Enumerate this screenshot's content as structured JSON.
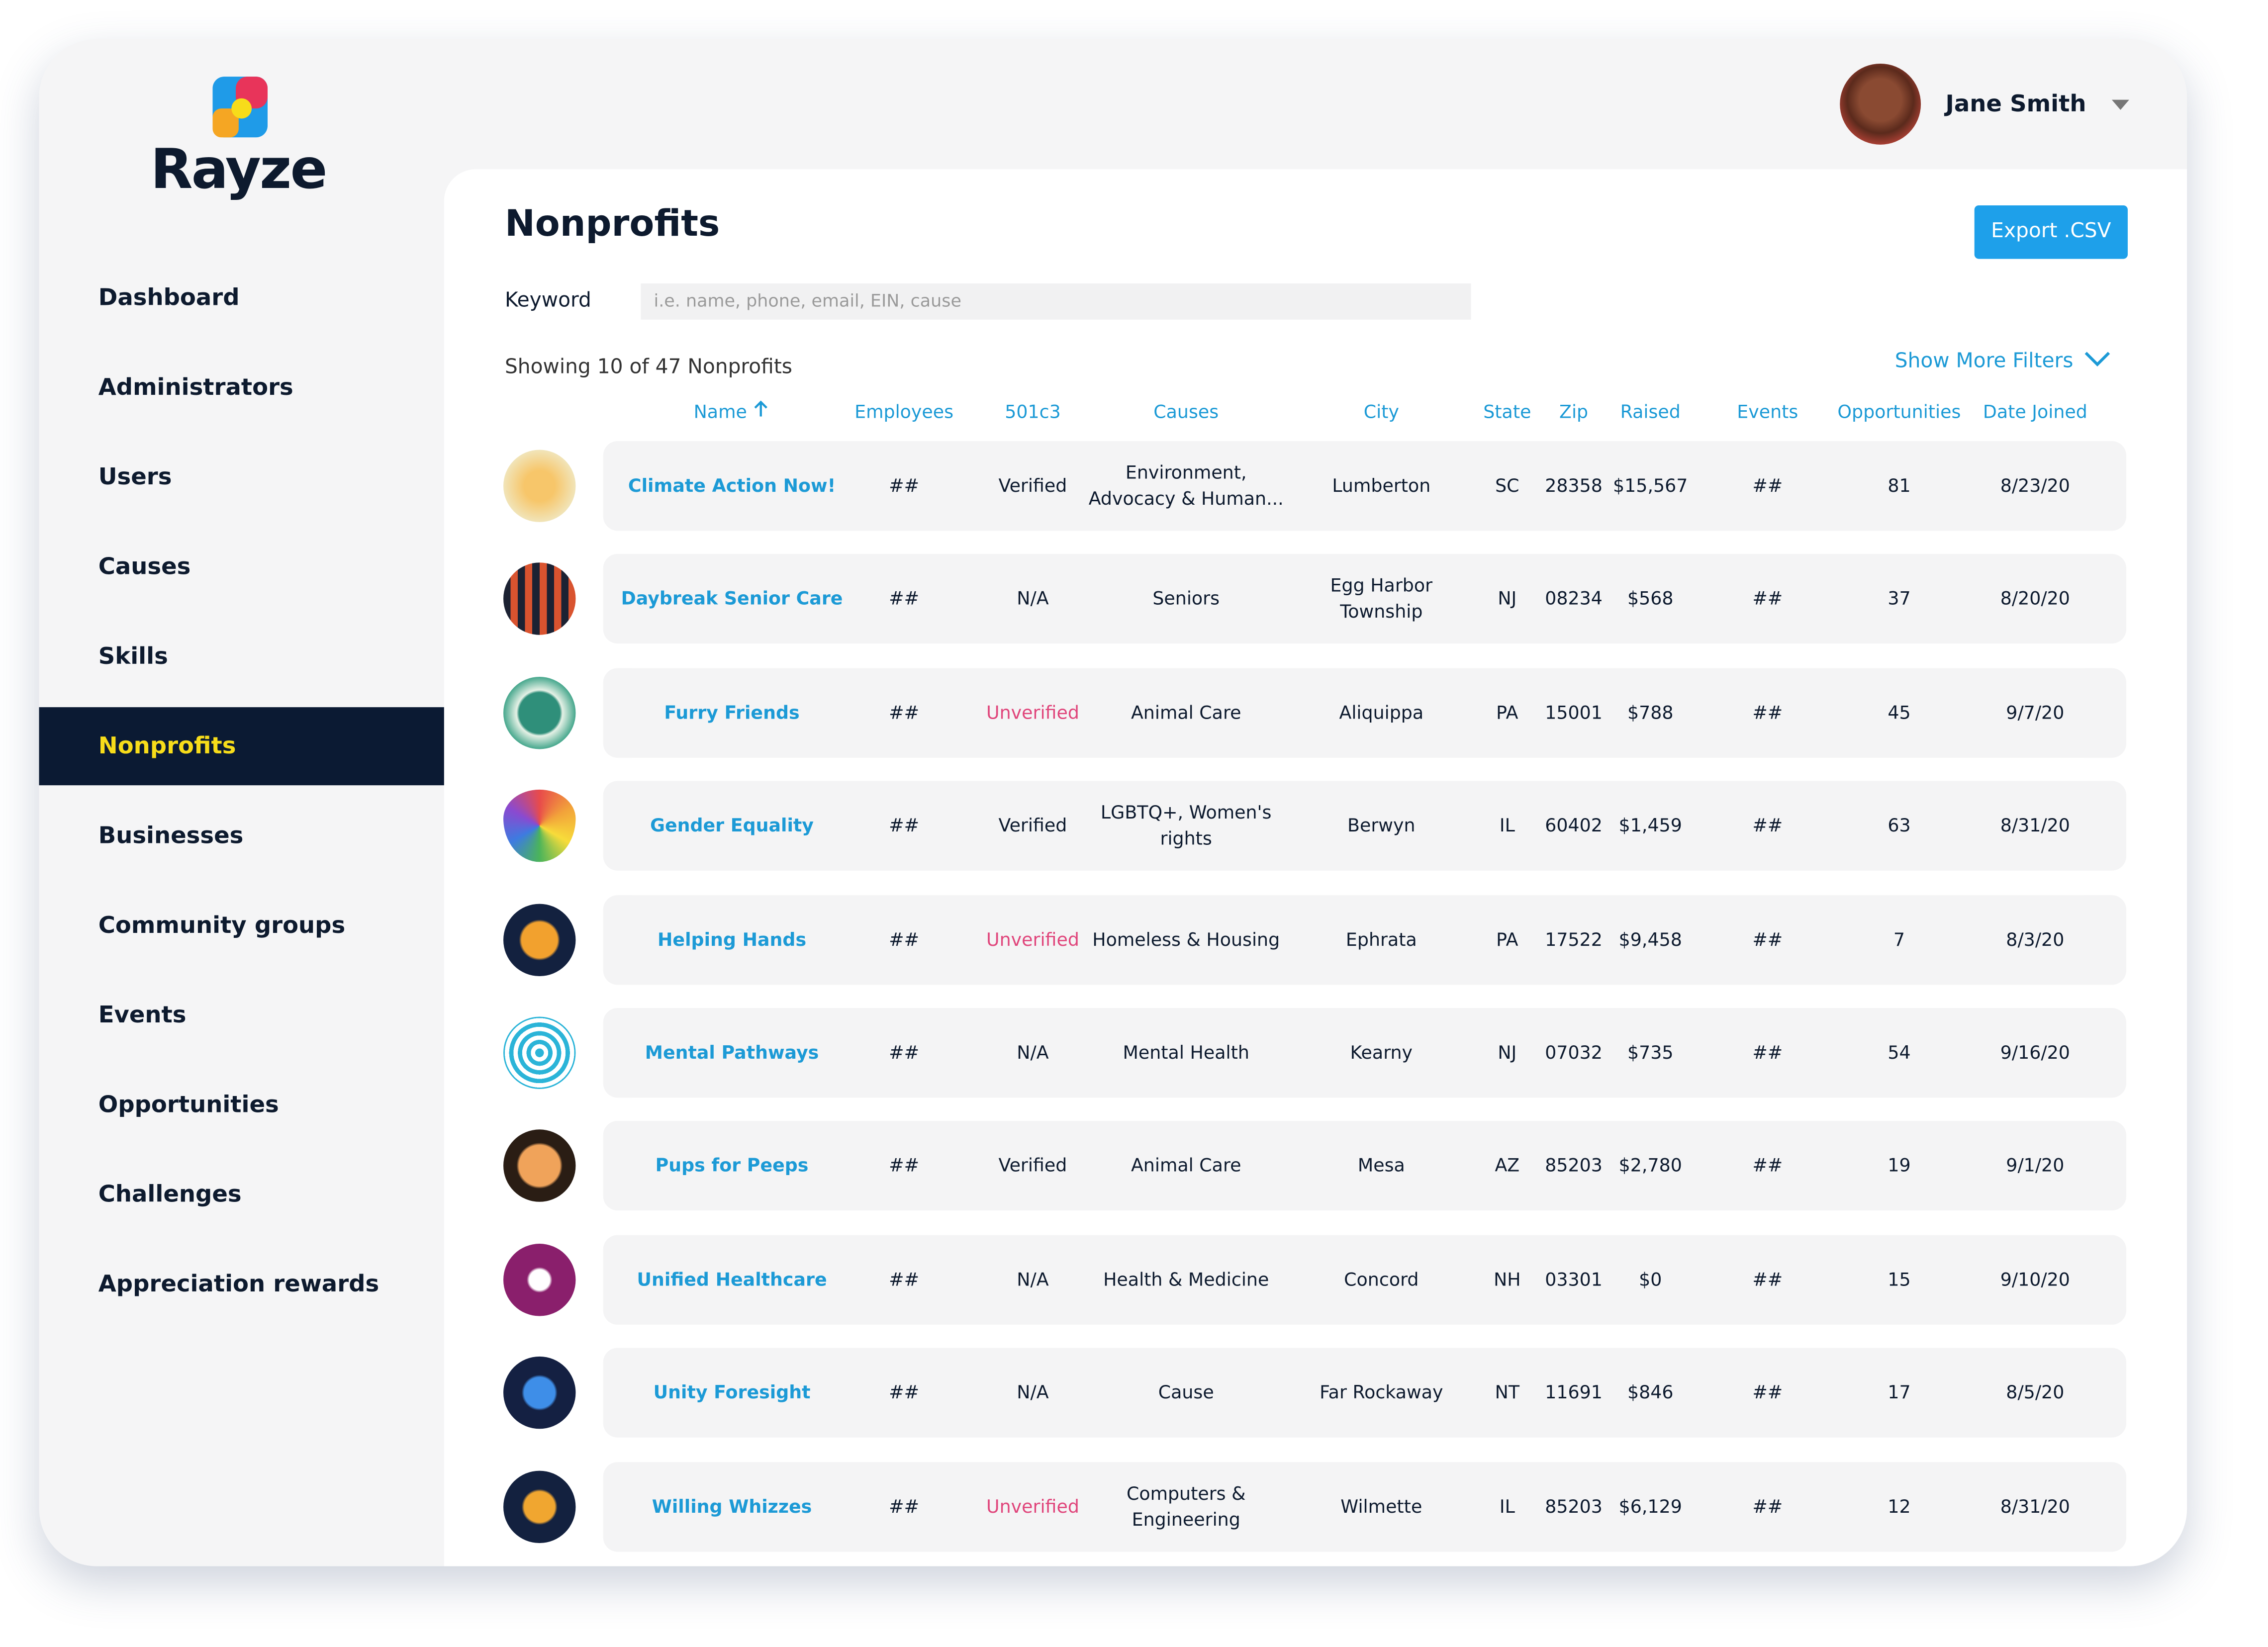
{
  "brand": "Rayze",
  "user": {
    "name": "Jane Smith"
  },
  "nav": [
    "Dashboard",
    "Administrators",
    "Users",
    "Causes",
    "Skills",
    "Nonprofits",
    "Businesses",
    "Community groups",
    "Events",
    "Opportunities",
    "Challenges",
    "Appreciation rewards"
  ],
  "nav_active": 5,
  "page": {
    "title": "Nonprofits",
    "export": "Export .CSV",
    "keyword_label": "Keyword",
    "keyword_placeholder": "i.e. name, phone, email, EIN, cause",
    "showing": "Showing 10 of 47 Nonprofits",
    "more_filters": "Show More Filters"
  },
  "table": {
    "columns": [
      "Name",
      "Employees",
      "501c3",
      "Causes",
      "City",
      "State",
      "Zip",
      "Raised",
      "Events",
      "Opportunities",
      "Date Joined"
    ],
    "rows": [
      {
        "name": "Climate Action Now!",
        "employees": "##",
        "status": "Verified",
        "causes": "Environment, Advocacy & Human...",
        "city": "Lumberton",
        "state": "SC",
        "zip": "28358",
        "raised": "$15,567",
        "events": "##",
        "opportunities": "81",
        "date_joined": "8/23/20"
      },
      {
        "name": "Daybreak Senior Care",
        "employees": "##",
        "status": "N/A",
        "causes": "Seniors",
        "city": "Egg Harbor Township",
        "state": "NJ",
        "zip": "08234",
        "raised": "$568",
        "events": "##",
        "opportunities": "37",
        "date_joined": "8/20/20"
      },
      {
        "name": "Furry Friends",
        "employees": "##",
        "status": "Unverified",
        "status_color": "#e0457b",
        "causes": "Animal Care",
        "city": "Aliquippa",
        "state": "PA",
        "zip": "15001",
        "raised": "$788",
        "events": "##",
        "opportunities": "45",
        "date_joined": "9/7/20"
      },
      {
        "name": "Gender Equality",
        "employees": "##",
        "status": "Verified",
        "causes": "LGBTQ+, Women's rights",
        "city": "Berwyn",
        "state": "IL",
        "zip": "60402",
        "raised": "$1,459",
        "events": "##",
        "opportunities": "63",
        "date_joined": "8/31/20"
      },
      {
        "name": "Helping Hands",
        "employees": "##",
        "status": "Unverified",
        "status_color": "#e0457b",
        "causes": "Homeless & Housing",
        "city": "Ephrata",
        "state": "PA",
        "zip": "17522",
        "raised": "$9,458",
        "events": "##",
        "opportunities": "7",
        "date_joined": "8/3/20"
      },
      {
        "name": "Mental Pathways",
        "employees": "##",
        "status": "N/A",
        "causes": "Mental Health",
        "city": "Kearny",
        "state": "NJ",
        "zip": "07032",
        "raised": "$735",
        "events": "##",
        "opportunities": "54",
        "date_joined": "9/16/20"
      },
      {
        "name": "Pups for Peeps",
        "employees": "##",
        "status": "Verified",
        "causes": "Animal Care",
        "city": "Mesa",
        "state": "AZ",
        "zip": "85203",
        "raised": "$2,780",
        "events": "##",
        "opportunities": "19",
        "date_joined": "9/1/20"
      },
      {
        "name": "Unified Healthcare",
        "employees": "##",
        "status": "N/A",
        "causes": "Health & Medicine",
        "city": "Concord",
        "state": "NH",
        "zip": "03301",
        "raised": "$0",
        "events": "##",
        "opportunities": "15",
        "date_joined": "9/10/20"
      },
      {
        "name": "Unity Foresight",
        "employees": "##",
        "status": "N/A",
        "causes": "Cause",
        "city": "Far Rockaway",
        "state": "NT",
        "zip": "11691",
        "raised": "$846",
        "events": "##",
        "opportunities": "17",
        "date_joined": "8/5/20"
      },
      {
        "name": "Willing Whizzes",
        "employees": "##",
        "status": "Unverified",
        "status_color": "#e0457b",
        "causes": "Computers & Engineering",
        "city": "Wilmette",
        "state": "IL",
        "zip": "85203",
        "raised": "$6,129",
        "events": "##",
        "opportunities": "12",
        "date_joined": "8/31/20"
      }
    ]
  }
}
